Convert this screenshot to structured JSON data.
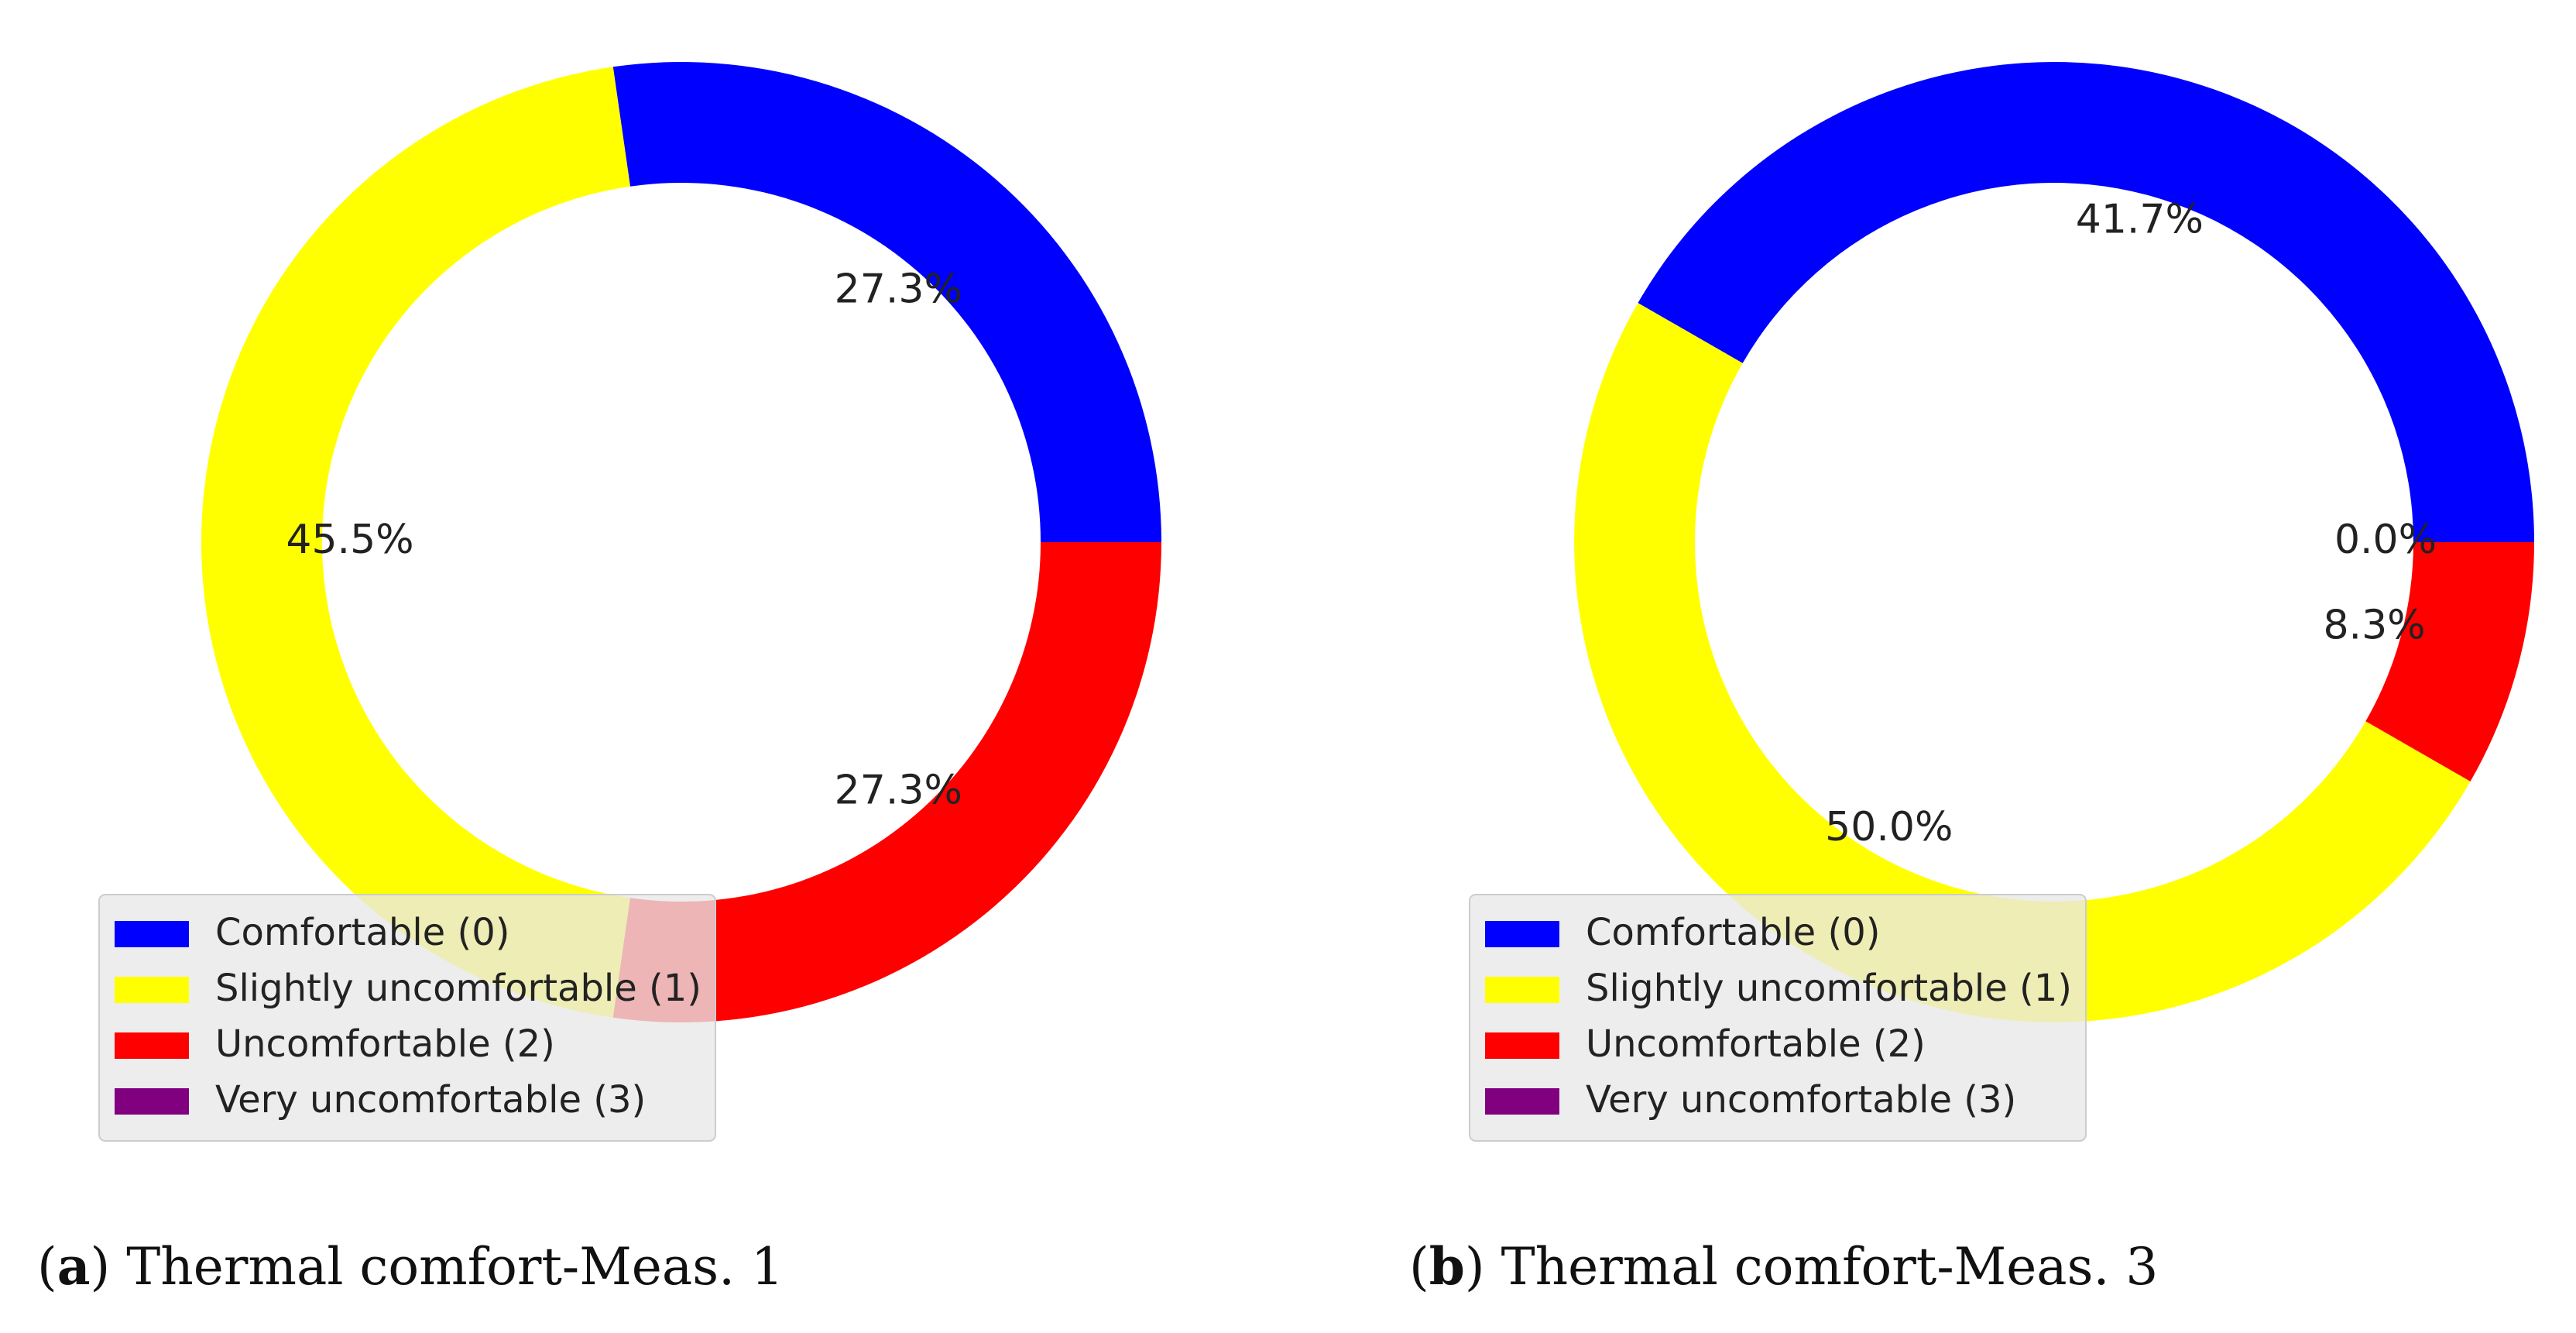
{
  "chart_data": [
    {
      "type": "pie",
      "style": "donut",
      "caption_letter": "a",
      "caption_text": "Thermal comfort-Meas. 1",
      "legend_position": "lower-left",
      "slices": [
        {
          "label": "Comfortable (0)",
          "value": 27.3,
          "value_label": "27.3%",
          "color": "#0000ff"
        },
        {
          "label": "Slightly uncomfortable (1)",
          "value": 45.5,
          "value_label": "45.5%",
          "color": "#ffff00"
        },
        {
          "label": "Uncomfortable (2)",
          "value": 27.3,
          "value_label": "27.3%",
          "color": "#ff0000"
        },
        {
          "label": "Very uncomfortable (3)",
          "value": 0.0,
          "color": "#800080"
        }
      ]
    },
    {
      "type": "pie",
      "style": "donut",
      "caption_letter": "b",
      "caption_text": "Thermal comfort-Meas. 3",
      "legend_position": "lower-left",
      "slices": [
        {
          "label": "Comfortable (0)",
          "value": 41.7,
          "value_label": "41.7%",
          "color": "#0000ff"
        },
        {
          "label": "Slightly uncomfortable (1)",
          "value": 50.0,
          "value_label": "50.0%",
          "color": "#ffff00"
        },
        {
          "label": "Uncomfortable (2)",
          "value": 8.3,
          "value_label": "8.3%",
          "color": "#ff0000"
        },
        {
          "label": "Very uncomfortable (3)",
          "value": 0.0,
          "value_label": "0.0%",
          "color": "#800080"
        }
      ]
    }
  ]
}
